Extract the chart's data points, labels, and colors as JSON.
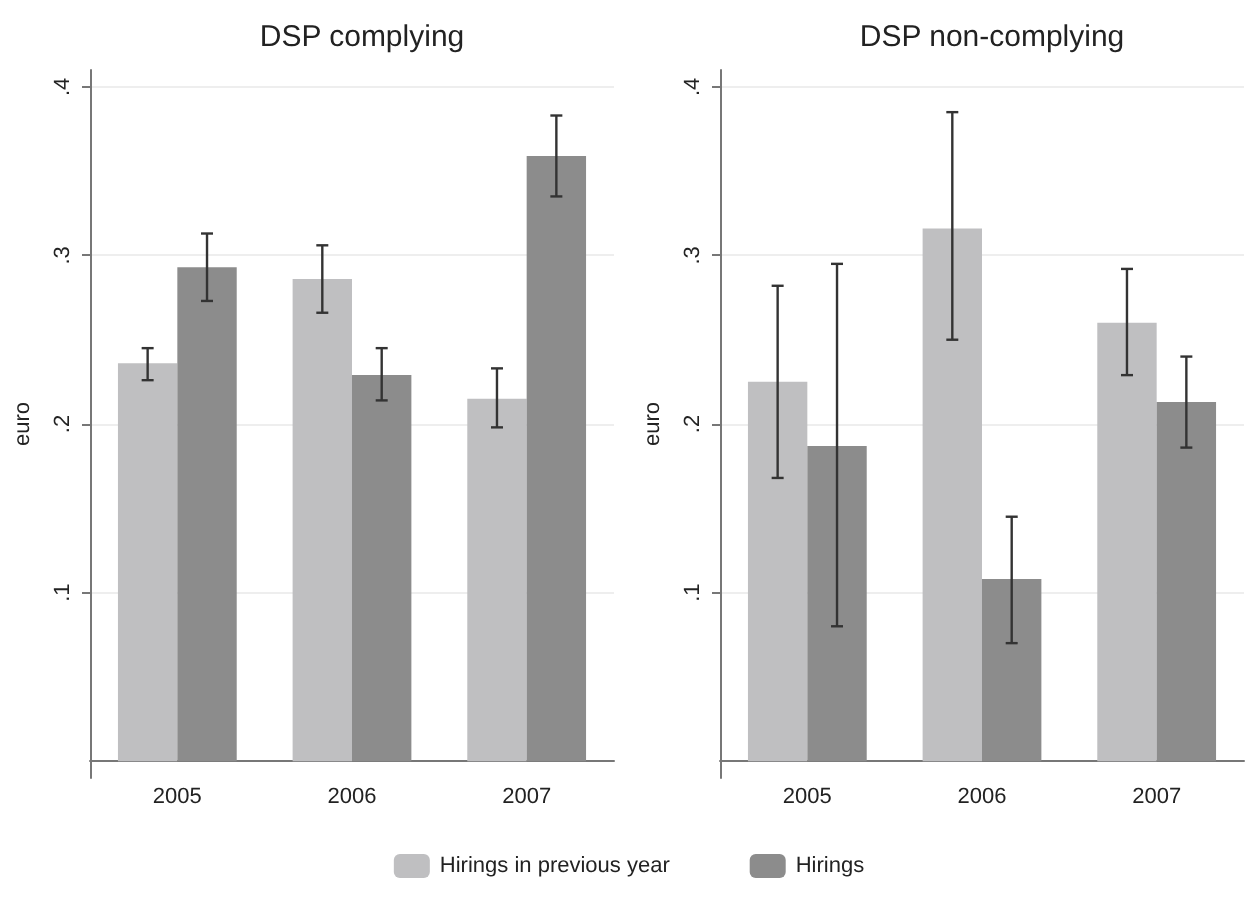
{
  "chart_data": [
    {
      "type": "bar",
      "title": "DSP complying",
      "ylabel": "euro",
      "categories": [
        "2005",
        "2006",
        "2007"
      ],
      "series": [
        {
          "name": "Hirings in previous year",
          "color": "#bfbfc1",
          "values": [
            0.236,
            0.286,
            0.215
          ],
          "errors": [
            [
              0.226,
              0.245
            ],
            [
              0.266,
              0.306
            ],
            [
              0.198,
              0.233
            ]
          ]
        },
        {
          "name": "Hirings",
          "color": "#8c8c8c",
          "values": [
            0.293,
            0.229,
            0.359
          ],
          "errors": [
            [
              0.273,
              0.313
            ],
            [
              0.214,
              0.245
            ],
            [
              0.335,
              0.383
            ]
          ]
        }
      ],
      "ylim": [
        -0.01,
        0.41
      ],
      "yticks": [
        {
          "value": 0.1,
          "label": ".1"
        },
        {
          "value": 0.2,
          "label": ".2"
        },
        {
          "value": 0.3,
          "label": ".3"
        },
        {
          "value": 0.4,
          "label": ".4"
        }
      ],
      "grid": "y",
      "legend": "bottom"
    },
    {
      "type": "bar",
      "title": "DSP non-complying",
      "ylabel": "euro",
      "categories": [
        "2005",
        "2006",
        "2007"
      ],
      "series": [
        {
          "color": "#bfbfc1",
          "values": [
            0.225,
            0.316,
            0.26
          ],
          "errors": [
            [
              0.168,
              0.282
            ],
            [
              0.25,
              0.385
            ],
            [
              0.229,
              0.292
            ]
          ]
        },
        {
          "color": "#8c8c8c",
          "values": [
            0.187,
            0.108,
            0.213
          ],
          "errors": [
            [
              0.08,
              0.295
            ],
            [
              0.07,
              0.145
            ],
            [
              0.186,
              0.24
            ]
          ]
        }
      ],
      "ylim": [
        -0.01,
        0.41
      ],
      "yticks": [
        {
          "value": 0.1,
          "label": ".1"
        },
        {
          "value": 0.2,
          "label": ".2"
        },
        {
          "value": 0.3,
          "label": ".3"
        },
        {
          "value": 0.4,
          "label": ".4"
        }
      ],
      "grid": "y",
      "legend": false
    }
  ]
}
